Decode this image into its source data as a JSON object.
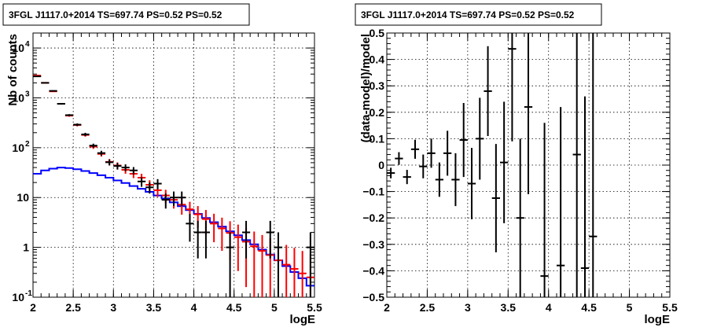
{
  "chart_data": [
    {
      "type": "line",
      "title": "3FGL J1117.0+2014 TS=697.74 PS=0.52 PS=0.52",
      "xlabel": "logE",
      "ylabel": "Nb of counts",
      "xlim": [
        2,
        5.5
      ],
      "ylim": [
        0.1,
        20000
      ],
      "yscale": "log",
      "grid": true,
      "xticks": [
        "2",
        "2.5",
        "3",
        "3.5",
        "4",
        "4.5",
        "5",
        "5.5"
      ],
      "yticks": [
        {
          "value": 0.1,
          "label": "10",
          "exp": "-1"
        },
        {
          "value": 1,
          "label": "1",
          "exp": ""
        },
        {
          "value": 10,
          "label": "10",
          "exp": ""
        },
        {
          "value": 100,
          "label": "10",
          "exp": "2"
        },
        {
          "value": 1000,
          "label": "10",
          "exp": "3"
        },
        {
          "value": 10000,
          "label": "10",
          "exp": "4"
        }
      ],
      "series": [
        {
          "kind": "points",
          "color": "#000000",
          "halfwidth": 0.05,
          "x": [
            2.05,
            2.15,
            2.25,
            2.35,
            2.45,
            2.55,
            2.65,
            2.75,
            2.85,
            2.95,
            3.05,
            3.15,
            3.25,
            3.35,
            3.45,
            3.55,
            3.65,
            3.75,
            3.85,
            3.95,
            4.05,
            4.15,
            4.45,
            4.65,
            4.95,
            5.05,
            5.45
          ],
          "y": [
            2700,
            2000,
            1380,
            760,
            450,
            290,
            185,
            110,
            78,
            51,
            43,
            40,
            35,
            21,
            16,
            19,
            9,
            10,
            10,
            3,
            2,
            2,
            1,
            2,
            2,
            1,
            1
          ],
          "err": [
            52,
            45,
            37,
            28,
            21,
            17,
            14,
            10.5,
            8.8,
            7.1,
            6.6,
            6.3,
            5.9,
            4.6,
            4,
            4.4,
            3,
            3.2,
            3.2,
            1.7,
            1.4,
            1.4,
            1,
            1.4,
            1.4,
            1,
            1
          ]
        },
        {
          "kind": "model",
          "color": "#ff0000",
          "halfwidth": 0.05,
          "x": [
            2.05,
            2.15,
            2.25,
            2.35,
            2.45,
            2.55,
            2.65,
            2.75,
            2.85,
            2.95,
            3.05,
            3.15,
            3.25,
            3.35,
            3.45,
            3.55,
            3.65,
            3.75,
            3.85,
            3.95,
            4.05,
            4.15,
            4.25,
            4.35,
            4.45,
            4.55,
            4.65,
            4.75,
            4.85,
            4.95,
            5.05,
            5.15,
            5.25,
            5.35,
            5.45
          ],
          "y": [
            2800,
            2000,
            1350,
            760,
            440,
            285,
            180,
            105,
            75,
            52,
            44,
            36,
            30,
            25,
            18,
            14,
            11,
            9,
            7.2,
            5.8,
            4.6,
            3.7,
            3,
            2.4,
            1.95,
            1.6,
            1.3,
            1.05,
            0.85,
            0.7,
            0.55,
            0.45,
            0.37,
            0.3,
            0.25
          ]
        },
        {
          "kind": "histogram",
          "color": "#0000ff",
          "binwidth": 0.1,
          "x": [
            2.05,
            2.15,
            2.25,
            2.35,
            2.45,
            2.55,
            2.65,
            2.75,
            2.85,
            2.95,
            3.05,
            3.15,
            3.25,
            3.35,
            3.45,
            3.55,
            3.65,
            3.75,
            3.85,
            3.95,
            4.05,
            4.15,
            4.25,
            4.35,
            4.45,
            4.55,
            4.65,
            4.75,
            4.85,
            4.95,
            5.05,
            5.15,
            5.25,
            5.35,
            5.45
          ],
          "y": [
            30,
            35,
            38,
            40,
            39,
            37,
            34,
            31,
            28,
            25,
            22,
            19.5,
            17,
            15,
            13,
            11,
            9.5,
            8,
            6.7,
            5.6,
            4.7,
            3.9,
            3.2,
            2.6,
            2.1,
            1.75,
            1.4,
            1.15,
            0.9,
            0.72,
            0.55,
            0.42,
            0.32,
            0.24,
            0.17
          ]
        }
      ]
    },
    {
      "type": "scatter",
      "title": "3FGL J1117.0+2014 TS=697.74 PS=0.52 PS=0.52",
      "xlabel": "logE",
      "ylabel": "(data-model)/model",
      "xlim": [
        2,
        5.5
      ],
      "ylim": [
        -0.5,
        0.5
      ],
      "grid": true,
      "xticks": [
        "2",
        "2.5",
        "3",
        "3.5",
        "4",
        "4.5",
        "5",
        "5.5"
      ],
      "yticks": [
        "-0.5",
        "-0.4",
        "-0.3",
        "-0.2",
        "-0.1",
        "0",
        "0.1",
        "0.2",
        "0.3",
        "0.4",
        "0.5"
      ],
      "series": [
        {
          "color": "#000000",
          "halfwidth": 0.05,
          "x": [
            2.05,
            2.15,
            2.25,
            2.35,
            2.45,
            2.55,
            2.65,
            2.75,
            2.85,
            2.95,
            3.05,
            3.15,
            3.25,
            3.35,
            3.45,
            3.55,
            3.65,
            3.75,
            3.95,
            4.15,
            4.35,
            4.45,
            4.55
          ],
          "y": [
            -0.03,
            0.025,
            -0.045,
            0.06,
            -0.005,
            0.045,
            -0.055,
            0.045,
            -0.055,
            0.095,
            -0.07,
            0.1,
            0.28,
            -0.125,
            0.01,
            0.44,
            -0.2,
            0.22,
            -0.42,
            -0.38,
            0.04,
            -0.39,
            -0.27
          ],
          "err": [
            0.02,
            0.024,
            0.027,
            0.036,
            0.045,
            0.055,
            0.065,
            0.085,
            0.1,
            0.14,
            0.135,
            0.155,
            0.17,
            0.205,
            0.23,
            0.35,
            0.3,
            0.33,
            0.58,
            0.6,
            0.95,
            0.65,
            0.98
          ]
        }
      ]
    }
  ]
}
